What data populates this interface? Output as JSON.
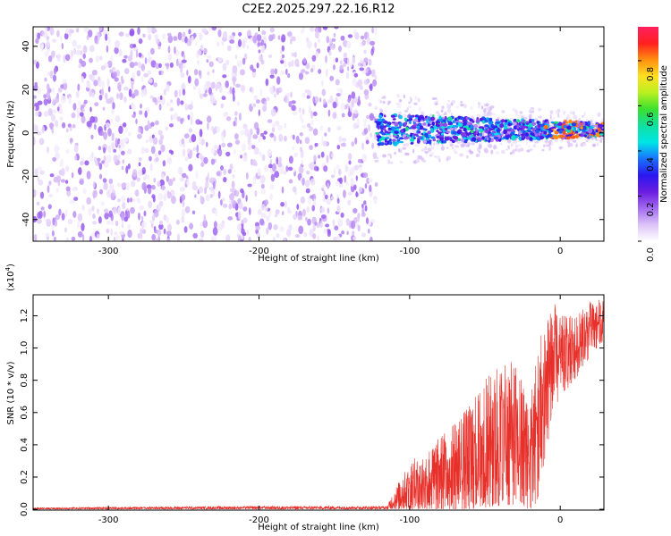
{
  "title": "C2E2.2025.297.22.16.R12",
  "colors": {
    "snr_line": "#e8302a",
    "axis": "#000000",
    "colorbar": [
      "#ffffff",
      "#dcc3f7",
      "#a26af0",
      "#6a1ce0",
      "#2a18f0",
      "#1a72ff",
      "#00e6e6",
      "#10e0a0",
      "#3ae030",
      "#b8f020",
      "#ffe020",
      "#ff9010",
      "#ff2020",
      "#ff2060"
    ]
  },
  "chart_data": [
    {
      "type": "heatmap",
      "xlabel": "Height of straight line (km)",
      "ylabel": "Frequency (Hz)",
      "xlim": [
        -350,
        29
      ],
      "ylim": [
        -50,
        49
      ],
      "xticks": [
        "-300",
        "-200",
        "-100",
        "0"
      ],
      "xtick_values": [
        -300,
        -200,
        -100,
        0
      ],
      "yticks": [
        "40",
        "20",
        "0",
        "-20",
        "-40"
      ],
      "ytick_values": [
        40,
        20,
        0,
        -20,
        -40
      ],
      "colorbar": {
        "label": "Normalized spectral amplitude",
        "range": [
          0.0,
          0.95
        ],
        "ticks": [
          "0.0",
          "0.2",
          "0.4",
          "0.6",
          "0.8"
        ],
        "tick_values": [
          0.0,
          0.2,
          0.4,
          0.6,
          0.8
        ]
      },
      "regions": [
        {
          "x_range": [
            -350,
            -122
          ],
          "y_range": [
            -50,
            49
          ],
          "amplitude_range": [
            0.02,
            0.15
          ]
        },
        {
          "x_range": [
            -122,
            29
          ],
          "center_hz": 1.5,
          "bandwidth_hz": 7,
          "amplitude_range": [
            0.1,
            0.85
          ]
        }
      ]
    },
    {
      "type": "line",
      "xlabel": "Height of straight line (km)",
      "ylabel": "SNR (10 * v/v)",
      "exponent_label": "(x10",
      "exponent": "4",
      "exponent_close": ")",
      "xlim": [
        -350,
        29
      ],
      "ylim": [
        -0.005,
        1.33
      ],
      "xticks": [
        "-300",
        "-200",
        "-100",
        "0"
      ],
      "xtick_values": [
        -300,
        -200,
        -100,
        0
      ],
      "yticks": [
        "0.0",
        "0.2",
        "0.4",
        "0.6",
        "0.8",
        "1.0",
        "1.2"
      ],
      "ytick_values": [
        0.0,
        0.2,
        0.4,
        0.6,
        0.8,
        1.0,
        1.2
      ],
      "series": [
        {
          "envelope_x": [
            -350,
            -300,
            -200,
            -115,
            -110,
            -100,
            -90,
            -80,
            -70,
            -60,
            -50,
            -40,
            -30,
            -20,
            -15,
            -10,
            -5,
            0,
            10,
            20,
            29
          ],
          "envelope_low": [
            0.0,
            0.0,
            0.0,
            0.0,
            0.0,
            0.0,
            0.0,
            0.0,
            0.0,
            0.0,
            0.01,
            0.02,
            0.03,
            0.0,
            0.05,
            0.3,
            0.6,
            0.7,
            0.8,
            0.95,
            1.05
          ],
          "envelope_high": [
            0.01,
            0.015,
            0.02,
            0.02,
            0.12,
            0.3,
            0.35,
            0.45,
            0.55,
            0.65,
            0.8,
            0.95,
            0.9,
            0.7,
            1.0,
            1.25,
            1.3,
            1.2,
            1.2,
            1.3,
            1.3
          ]
        }
      ]
    }
  ]
}
